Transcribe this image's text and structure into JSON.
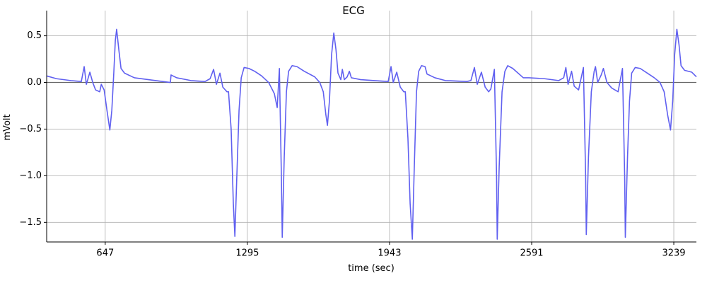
{
  "chart_data": {
    "type": "line",
    "title": "ECG",
    "x_label": "time (sec)",
    "y_label": "mVolt",
    "color": "#6060f0",
    "grid": true,
    "axhline": 0,
    "xlim": [
      380,
      3342
    ],
    "ylim": [
      -1.71,
      0.77
    ],
    "xticks": [
      647,
      1295,
      1943,
      2591,
      3239
    ],
    "yticks": [
      0.5,
      {
        "value": 0,
        "label": "0.0"
      },
      {
        "value": -0.5,
        "label": "−0.5"
      },
      {
        "value": -1,
        "label": "−1.0"
      },
      {
        "value": -1.5,
        "label": "−1.5"
      }
    ],
    "x": [
      380,
      425,
      490,
      538,
      551,
      561,
      577,
      590,
      603,
      622,
      629,
      642,
      655,
      668,
      677,
      686,
      693,
      699,
      709,
      719,
      735,
      780,
      844,
      909,
      944,
      947,
      973,
      1038,
      1102,
      1125,
      1141,
      1154,
      1170,
      1183,
      1202,
      1209,
      1221,
      1231,
      1238,
      1247,
      1257,
      1267,
      1280,
      1302,
      1328,
      1360,
      1392,
      1418,
      1431,
      1441,
      1450,
      1454,
      1463,
      1473,
      1483,
      1499,
      1521,
      1554,
      1602,
      1625,
      1641,
      1653,
      1660,
      1669,
      1679,
      1689,
      1699,
      1708,
      1721,
      1728,
      1737,
      1750,
      1760,
      1769,
      1811,
      1875,
      1937,
      1950,
      1960,
      1976,
      1992,
      2008,
      2015,
      2027,
      2037,
      2047,
      2056,
      2066,
      2076,
      2089,
      2105,
      2114,
      2150,
      2198,
      2295,
      2314,
      2330,
      2343,
      2362,
      2379,
      2395,
      2405,
      2421,
      2431,
      2434,
      2443,
      2456,
      2469,
      2482,
      2505,
      2553,
      2579,
      2650,
      2714,
      2737,
      2747,
      2757,
      2773,
      2785,
      2805,
      2827,
      2837,
      2840,
      2850,
      2863,
      2876,
      2882,
      2892,
      2908,
      2918,
      2934,
      2956,
      2985,
      3005,
      3015,
      3018,
      3028,
      3037,
      3047,
      3063,
      3086,
      3118,
      3150,
      3176,
      3195,
      3211,
      3224,
      3234,
      3243,
      3253,
      3263,
      3272,
      3288,
      3321,
      3342
    ],
    "values": [
      0.07,
      0.04,
      0.02,
      0.01,
      0.17,
      -0.02,
      0.11,
      0.0,
      -0.08,
      -0.1,
      -0.02,
      -0.08,
      -0.3,
      -0.51,
      -0.3,
      0.1,
      0.45,
      0.57,
      0.35,
      0.15,
      0.1,
      0.05,
      0.03,
      0.01,
      0.0,
      0.08,
      0.05,
      0.02,
      0.01,
      0.04,
      0.14,
      -0.02,
      0.1,
      -0.05,
      -0.1,
      -0.1,
      -0.5,
      -1.3,
      -1.65,
      -1.0,
      -0.3,
      0.05,
      0.16,
      0.15,
      0.12,
      0.07,
      0.0,
      -0.12,
      -0.27,
      0.15,
      -1.0,
      -1.66,
      -0.8,
      -0.1,
      0.12,
      0.18,
      0.17,
      0.12,
      0.06,
      0.0,
      -0.1,
      -0.35,
      -0.46,
      -0.2,
      0.3,
      0.53,
      0.35,
      0.1,
      0.03,
      0.14,
      0.03,
      0.06,
      0.12,
      0.05,
      0.03,
      0.02,
      0.01,
      0.17,
      0.0,
      0.11,
      -0.05,
      -0.1,
      -0.1,
      -0.6,
      -1.3,
      -1.68,
      -0.9,
      -0.1,
      0.12,
      0.18,
      0.17,
      0.09,
      0.05,
      0.02,
      0.01,
      0.02,
      0.16,
      -0.02,
      0.11,
      -0.05,
      -0.1,
      -0.07,
      0.14,
      -1.0,
      -1.68,
      -0.9,
      -0.1,
      0.12,
      0.18,
      0.15,
      0.05,
      0.05,
      0.04,
      0.02,
      0.05,
      0.16,
      -0.02,
      0.12,
      -0.04,
      -0.08,
      0.16,
      -1.0,
      -1.63,
      -0.8,
      -0.1,
      0.12,
      0.17,
      0.0,
      0.08,
      0.15,
      0.0,
      -0.06,
      -0.1,
      0.15,
      -1.0,
      -1.66,
      -0.8,
      -0.2,
      0.1,
      0.16,
      0.15,
      0.1,
      0.05,
      0.0,
      -0.1,
      -0.35,
      -0.51,
      -0.2,
      0.3,
      0.57,
      0.4,
      0.18,
      0.13,
      0.11,
      0.06
    ]
  }
}
